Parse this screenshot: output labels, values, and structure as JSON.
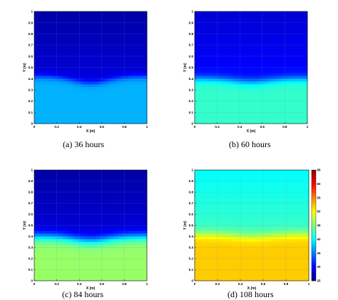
{
  "colors": {
    "colormap": [
      "#00008f",
      "#0000ff",
      "#0080ff",
      "#00ffff",
      "#80ff80",
      "#ffff00",
      "#ff8000",
      "#ff0000",
      "#800000"
    ]
  },
  "chart_data": [
    {
      "type": "heatmap",
      "caption": "(a) 36 hours",
      "xlabel": "X (m)",
      "ylabel": "Y (m)",
      "xlim": [
        0,
        1
      ],
      "ylim": [
        0,
        1
      ],
      "x_ticks": [
        "0",
        "0.2",
        "0.4",
        "0.6",
        "0.8",
        "1"
      ],
      "y_ticks": [
        "0",
        "0.1",
        "0.2",
        "0.3",
        "0.4",
        "0.5",
        "0.6",
        "0.7",
        "0.8",
        "0.9",
        "1"
      ],
      "grid": true,
      "value_range": [
        25,
        65
      ],
      "bottom_value": 37,
      "top_value": 30,
      "interface_y": 0.42,
      "interface_dip": 0.06,
      "interface_width": 0.05
    },
    {
      "type": "heatmap",
      "caption": "(b) 60 hours",
      "xlabel": "X (m)",
      "ylabel": "Y (m)",
      "xlim": [
        0,
        1
      ],
      "ylim": [
        0,
        1
      ],
      "x_ticks": [
        "0",
        "0.2",
        "0.4",
        "0.6",
        "0.8",
        "1"
      ],
      "y_ticks": [
        "0",
        "0.1",
        "0.2",
        "0.3",
        "0.4",
        "0.5",
        "0.6",
        "0.7",
        "0.8",
        "0.9",
        "1"
      ],
      "grid": true,
      "value_range": [
        25,
        65
      ],
      "bottom_value": 42,
      "top_value": 32,
      "interface_y": 0.4,
      "interface_dip": 0.03,
      "interface_width": 0.06
    },
    {
      "type": "heatmap",
      "caption": "(c) 84 hours",
      "xlabel": "X (m)",
      "ylabel": "Y (m)",
      "xlim": [
        0,
        1
      ],
      "ylim": [
        0,
        1
      ],
      "x_ticks": [
        "0",
        "0.2",
        "0.4",
        "0.6",
        "0.8",
        "1"
      ],
      "y_ticks": [
        "0",
        "0.1",
        "0.2",
        "0.3",
        "0.4",
        "0.5",
        "0.6",
        "0.7",
        "0.8",
        "0.9",
        "1"
      ],
      "grid": true,
      "value_range": [
        25,
        65
      ],
      "bottom_value": 46,
      "top_value": 30,
      "interface_y": 0.4,
      "interface_dip": 0.04,
      "interface_width": 0.08
    },
    {
      "type": "heatmap",
      "caption": "(d) 108 hours",
      "xlabel": "X (m)",
      "ylabel": "Y (m)",
      "xlim": [
        0,
        1
      ],
      "ylim": [
        0,
        1
      ],
      "x_ticks": [
        "0",
        "0.2",
        "0.4",
        "0.6",
        "0.8",
        "1"
      ],
      "y_ticks": [
        "0",
        "0.1",
        "0.2",
        "0.3",
        "0.4",
        "0.5",
        "0.6",
        "0.7",
        "0.8",
        "0.9",
        "1"
      ],
      "grid": true,
      "value_range": [
        25,
        65
      ],
      "bottom_value": 52,
      "top_value": 44,
      "interface_y": 0.42,
      "interface_dip": 0.02,
      "interface_width": 0.07,
      "colorbar": {
        "ticks": [
          "25",
          "30",
          "35",
          "40",
          "45",
          "50",
          "55",
          "60",
          "65"
        ],
        "range": [
          25,
          65
        ]
      }
    }
  ]
}
